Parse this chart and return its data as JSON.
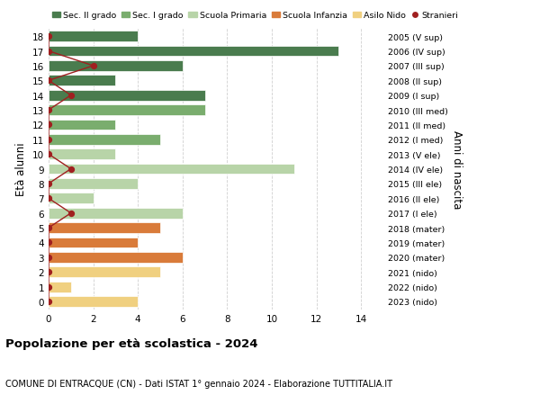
{
  "ages": [
    18,
    17,
    16,
    15,
    14,
    13,
    12,
    11,
    10,
    9,
    8,
    7,
    6,
    5,
    4,
    3,
    2,
    1,
    0
  ],
  "right_labels": [
    "2005 (V sup)",
    "2006 (IV sup)",
    "2007 (III sup)",
    "2008 (II sup)",
    "2009 (I sup)",
    "2010 (III med)",
    "2011 (II med)",
    "2012 (I med)",
    "2013 (V ele)",
    "2014 (IV ele)",
    "2015 (III ele)",
    "2016 (II ele)",
    "2017 (I ele)",
    "2018 (mater)",
    "2019 (mater)",
    "2020 (mater)",
    "2021 (nido)",
    "2022 (nido)",
    "2023 (nido)"
  ],
  "bar_values": [
    4,
    13,
    6,
    3,
    7,
    7,
    3,
    5,
    3,
    11,
    4,
    2,
    6,
    5,
    4,
    6,
    5,
    1,
    4
  ],
  "bar_colors": [
    "#4a7c4e",
    "#4a7c4e",
    "#4a7c4e",
    "#4a7c4e",
    "#4a7c4e",
    "#7aad6e",
    "#7aad6e",
    "#7aad6e",
    "#b8d4a8",
    "#b8d4a8",
    "#b8d4a8",
    "#b8d4a8",
    "#b8d4a8",
    "#d97b3a",
    "#d97b3a",
    "#d97b3a",
    "#f0d080",
    "#f0d080",
    "#f0d080"
  ],
  "stranieri_values": [
    0,
    0,
    2,
    0,
    1,
    0,
    0,
    0,
    0,
    1,
    0,
    0,
    1,
    0,
    0,
    0,
    0,
    0,
    0
  ],
  "stranieri_color": "#a02020",
  "legend_items": [
    {
      "label": "Sec. II grado",
      "color": "#4a7c4e"
    },
    {
      "label": "Sec. I grado",
      "color": "#7aad6e"
    },
    {
      "label": "Scuola Primaria",
      "color": "#b8d4a8"
    },
    {
      "label": "Scuola Infanzia",
      "color": "#d97b3a"
    },
    {
      "label": "Asilo Nido",
      "color": "#f0d080"
    },
    {
      "label": "Stranieri",
      "color": "#a02020"
    }
  ],
  "xlim": [
    0,
    15
  ],
  "xticks": [
    0,
    2,
    4,
    6,
    8,
    10,
    12,
    14
  ],
  "ylabel_left": "Età alunni",
  "ylabel_right": "Anni di nascita",
  "title": "Popolazione per età scolastica - 2024",
  "subtitle": "COMUNE DI ENTRACQUE (CN) - Dati ISTAT 1° gennaio 2024 - Elaborazione TUTTITALIA.IT",
  "background_color": "#ffffff",
  "grid_color": "#d0d0d0"
}
